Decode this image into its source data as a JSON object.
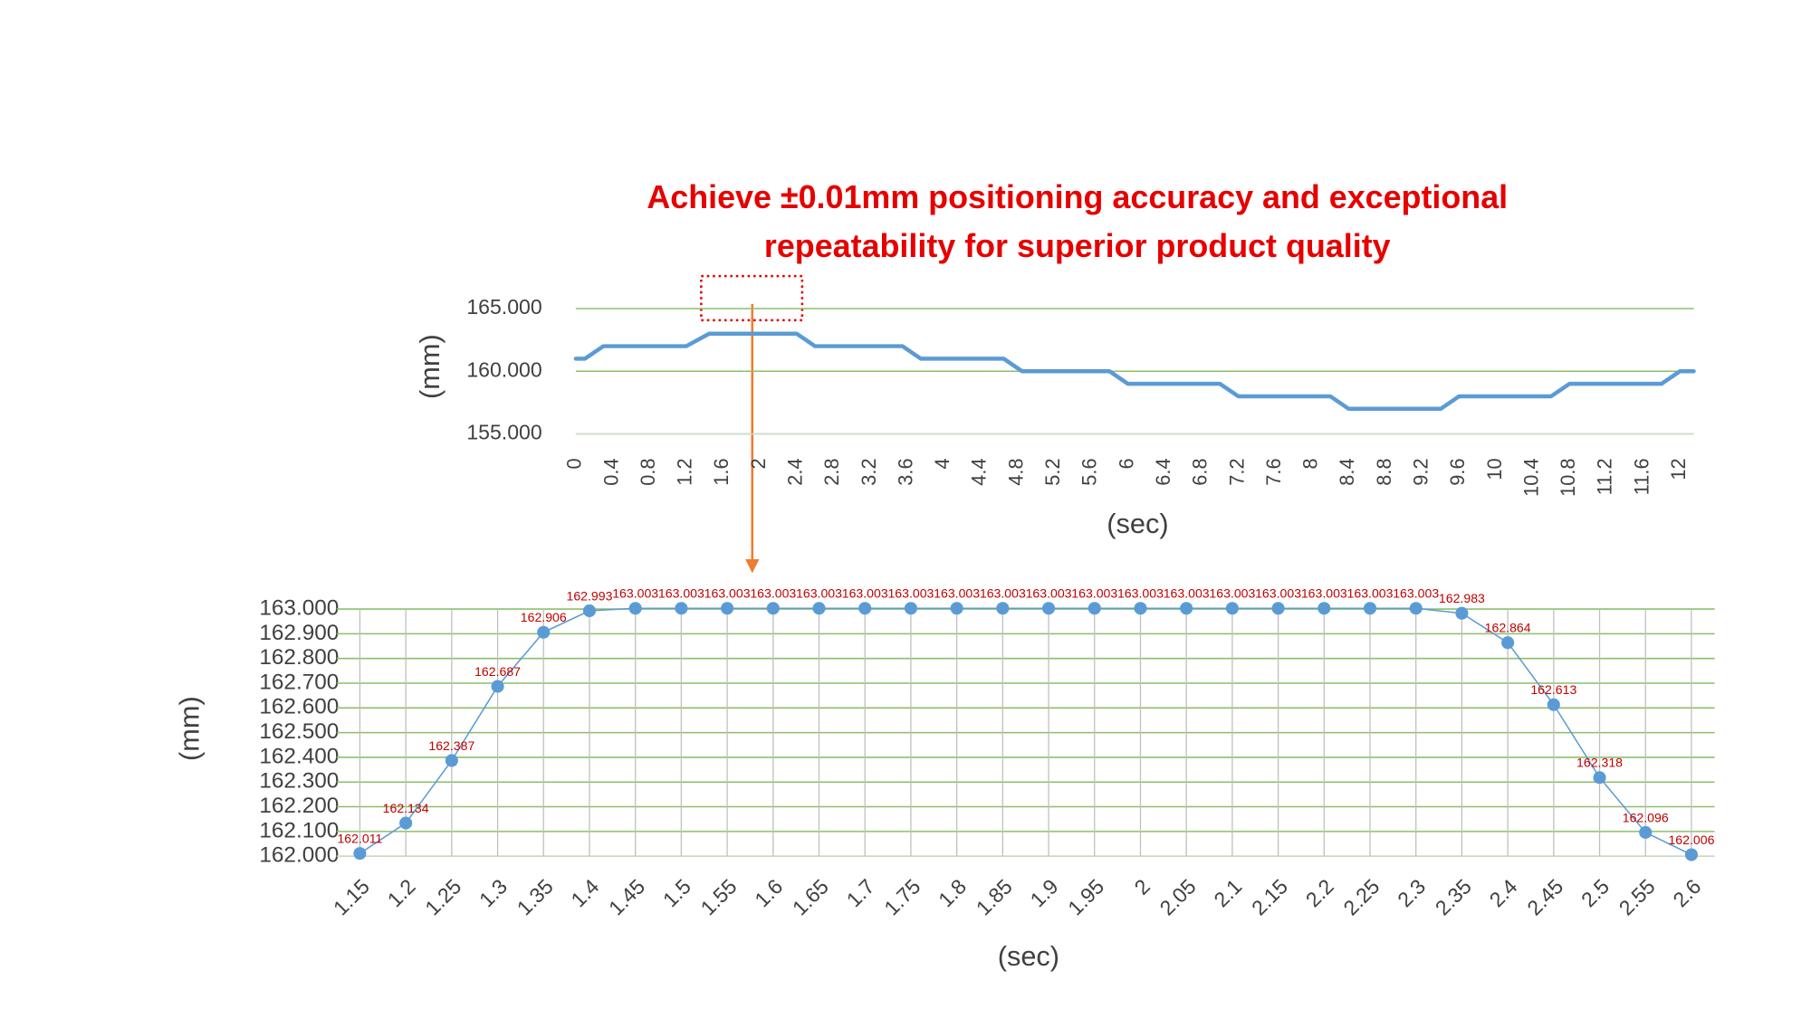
{
  "title": [
    "Achieve ±0.01mm positioning accuracy and exceptional",
    "repeatability for superior product quality"
  ],
  "chart_data": [
    {
      "type": "line",
      "x_label": "(sec)",
      "y_label": "(mm)",
      "x": [
        0,
        0.1,
        0.3,
        1.2,
        1.45,
        2.4,
        2.6,
        3.55,
        3.75,
        4.65,
        4.85,
        5.8,
        6,
        7,
        7.2,
        8.2,
        8.4,
        9.4,
        9.6,
        10.6,
        10.8,
        11.8,
        12,
        12.15
      ],
      "series": [
        {
          "color": "#5b9bd5",
          "values": [
            161,
            161,
            162,
            162,
            163,
            163,
            162,
            162,
            161,
            161,
            160,
            160,
            159,
            159,
            158,
            158,
            157,
            157,
            158,
            158,
            159,
            159,
            160,
            160
          ]
        }
      ],
      "xlim": [
        0,
        12.15
      ],
      "xticks": [
        0,
        0.4,
        0.8,
        1.2,
        1.6,
        2,
        2.4,
        2.8,
        3.2,
        3.6,
        4,
        4.4,
        4.8,
        5.2,
        5.6,
        6,
        6.4,
        6.8,
        7.2,
        7.6,
        8,
        8.4,
        8.8,
        9.2,
        9.6,
        10,
        10.4,
        10.8,
        11.2,
        11.6,
        12
      ],
      "ylim": [
        155,
        165
      ],
      "yticks": [
        {
          "value": 155,
          "label": "155.000"
        },
        {
          "value": 160,
          "label": "160.000"
        },
        {
          "value": 165,
          "label": "165.000"
        }
      ],
      "grid": true,
      "grid_color": "#8cbf6a"
    },
    {
      "type": "line",
      "x_label": "(sec)",
      "y_label": "(mm)",
      "markers": true,
      "data_labels": true,
      "categories": [
        "1.15",
        "1.2",
        "1.25",
        "1.3",
        "1.35",
        "1.4",
        "1.45",
        "1.5",
        "1.55",
        "1.6",
        "1.65",
        "1.7",
        "1.75",
        "1.8",
        "1.85",
        "1.9",
        "1.95",
        "2",
        "2.05",
        "2.1",
        "2.15",
        "2.2",
        "2.25",
        "2.3",
        "2.35",
        "2.4",
        "2.45",
        "2.5",
        "2.55",
        "2.6"
      ],
      "series": [
        {
          "color": "#5b9bd5",
          "values": [
            162.011,
            162.134,
            162.387,
            162.687,
            162.906,
            162.993,
            163.003,
            163.003,
            163.003,
            163.003,
            163.003,
            163.003,
            163.003,
            163.003,
            163.003,
            163.003,
            163.003,
            163.003,
            163.003,
            163.003,
            163.003,
            163.003,
            163.003,
            163.003,
            162.983,
            162.864,
            162.613,
            162.318,
            162.096,
            162.006
          ]
        }
      ],
      "ylim": [
        162,
        163
      ],
      "yticks": [
        {
          "value": 162,
          "label": "162.000"
        },
        {
          "value": 162.1,
          "label": "162.100"
        },
        {
          "value": 162.2,
          "label": "162.200"
        },
        {
          "value": 162.3,
          "label": "162.300"
        },
        {
          "value": 162.4,
          "label": "162.400"
        },
        {
          "value": 162.5,
          "label": "162.500"
        },
        {
          "value": 162.6,
          "label": "162.600"
        },
        {
          "value": 162.7,
          "label": "162.700"
        },
        {
          "value": 162.8,
          "label": "162.800"
        },
        {
          "value": 162.9,
          "label": "162.900"
        },
        {
          "value": 163,
          "label": "163.000"
        }
      ],
      "grid": true,
      "grid_color": "#8cbf6a",
      "label_color": "#c00000"
    }
  ]
}
